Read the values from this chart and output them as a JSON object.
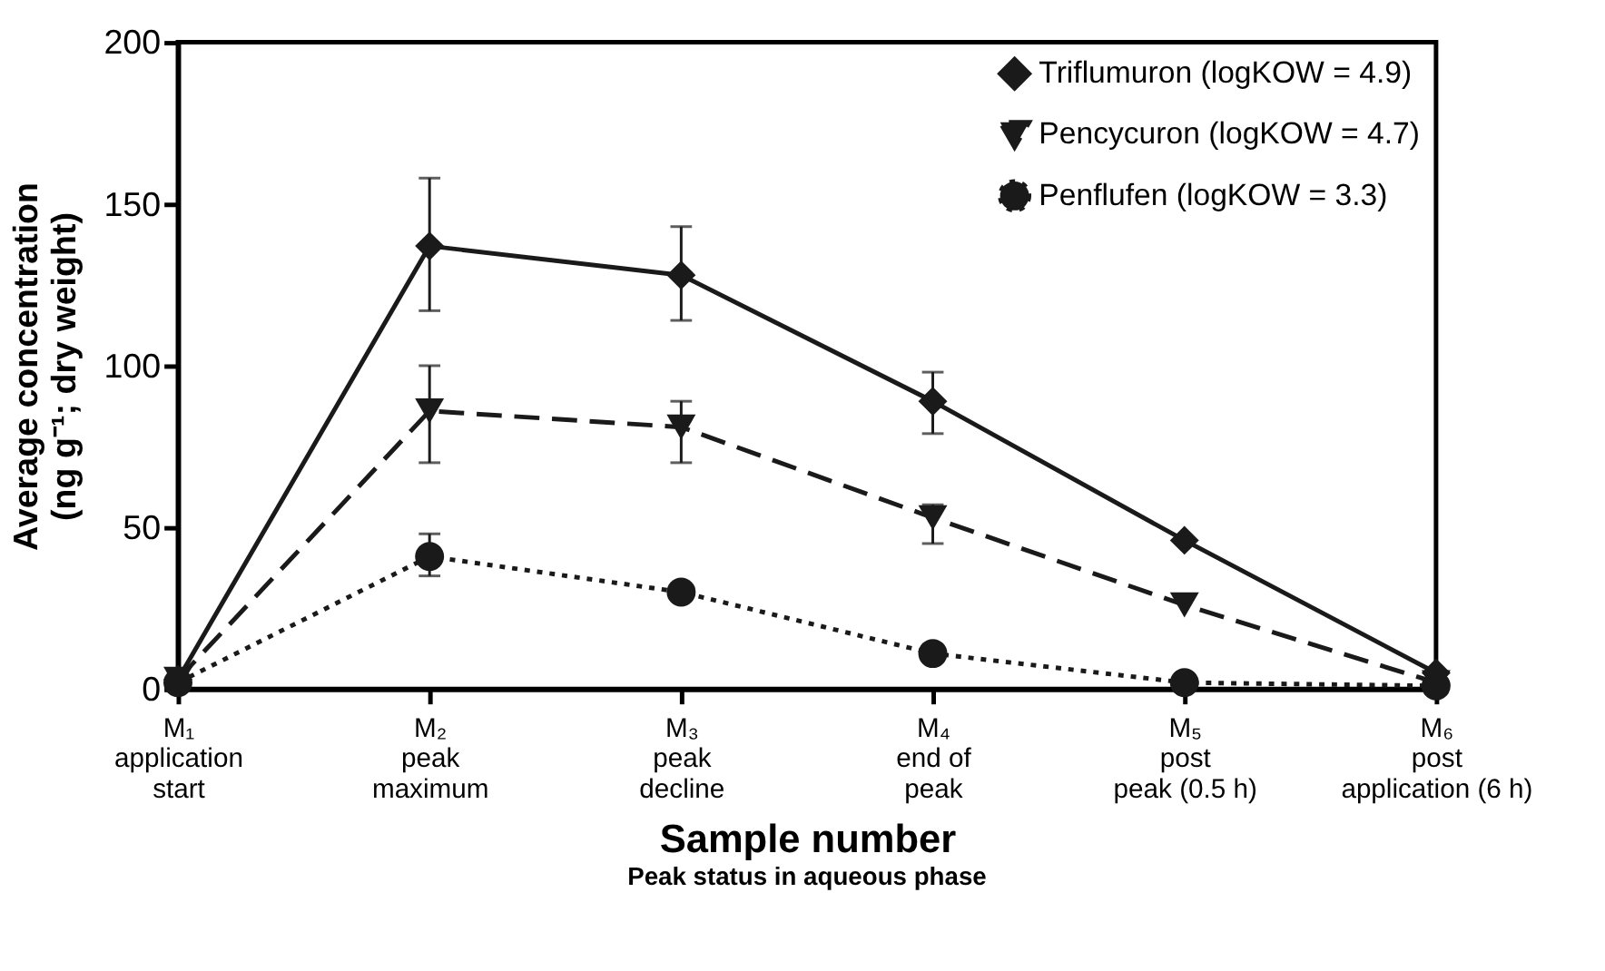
{
  "chart_data": {
    "type": "line",
    "categories": [
      "M₁\napplication\nstart",
      "M₂\npeak\nmaximum",
      "M₃\npeak\ndecline",
      "M₄\nend of\npeak",
      "M₅\npost\npeak (0.5 h)",
      "M₆\npost\napplication (6 h)"
    ],
    "series": [
      {
        "name": "Triflumuron (logKOW = 4.9)",
        "color": "#1a1a1a",
        "marker": "diamond",
        "line_style": "solid",
        "values": [
          3,
          137,
          128,
          89,
          46,
          5
        ],
        "errors": [
          null,
          [
            117,
            158
          ],
          [
            114,
            143
          ],
          [
            79,
            98
          ],
          null,
          null
        ]
      },
      {
        "name": "Pencycuron (logKOW = 4.7)",
        "color": "#1a1a1a",
        "marker": "triangle-down",
        "line_style": "dashed",
        "values": [
          3,
          86,
          81,
          53,
          26,
          2
        ],
        "errors": [
          null,
          [
            70,
            100
          ],
          [
            70,
            89
          ],
          [
            45,
            57
          ],
          null,
          null
        ]
      },
      {
        "name": "Penflufen (logKOW = 3.3)",
        "color": "#1a1a1a",
        "marker": "circle",
        "line_style": "dotted",
        "values": [
          2,
          41,
          30,
          11,
          2,
          1
        ],
        "errors": [
          null,
          [
            35,
            48
          ],
          null,
          null,
          null,
          null
        ]
      }
    ],
    "ylim": [
      0,
      200
    ],
    "yticks": [
      0,
      50,
      100,
      150,
      200
    ],
    "xlabel": "Sample number",
    "ylabel": "Average concentration\n(ng g⁻¹; dry weight)",
    "annotations": [
      "Peak status in aqueous phase"
    ],
    "legend": "top right",
    "grid": false
  }
}
